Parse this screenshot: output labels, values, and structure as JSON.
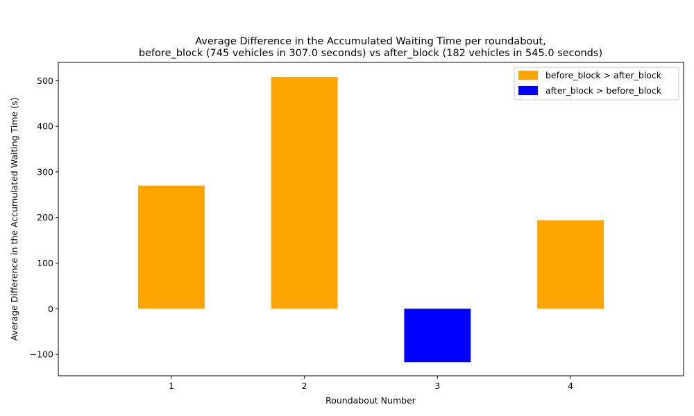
{
  "chart_data": {
    "type": "bar",
    "title_line1": "Average Difference in the Accumulated Waiting Time per roundabout,",
    "title_line2": "before_block (745 vehicles in 307.0 seconds) vs after_block (182 vehicles in 545.0 seconds)",
    "xlabel": "Roundabout Number",
    "ylabel": "Average Difference in the Accumulated Waiting Time (s)",
    "categories": [
      "1",
      "2",
      "3",
      "4"
    ],
    "values": [
      270,
      508,
      -117,
      194
    ],
    "ylim": [
      -147,
      540
    ],
    "yticks": [
      -100,
      0,
      100,
      200,
      300,
      400,
      500
    ],
    "ytick_labels": [
      "−100",
      "0",
      "100",
      "200",
      "300",
      "400",
      "500"
    ],
    "grid": false,
    "legend_position": "top-right",
    "legend": [
      {
        "label": "before_block > after_block",
        "color": "#FFA500"
      },
      {
        "label": "after_block > before_block",
        "color": "#0000FF"
      }
    ],
    "positive_color": "#FFA500",
    "negative_color": "#0000FF"
  }
}
